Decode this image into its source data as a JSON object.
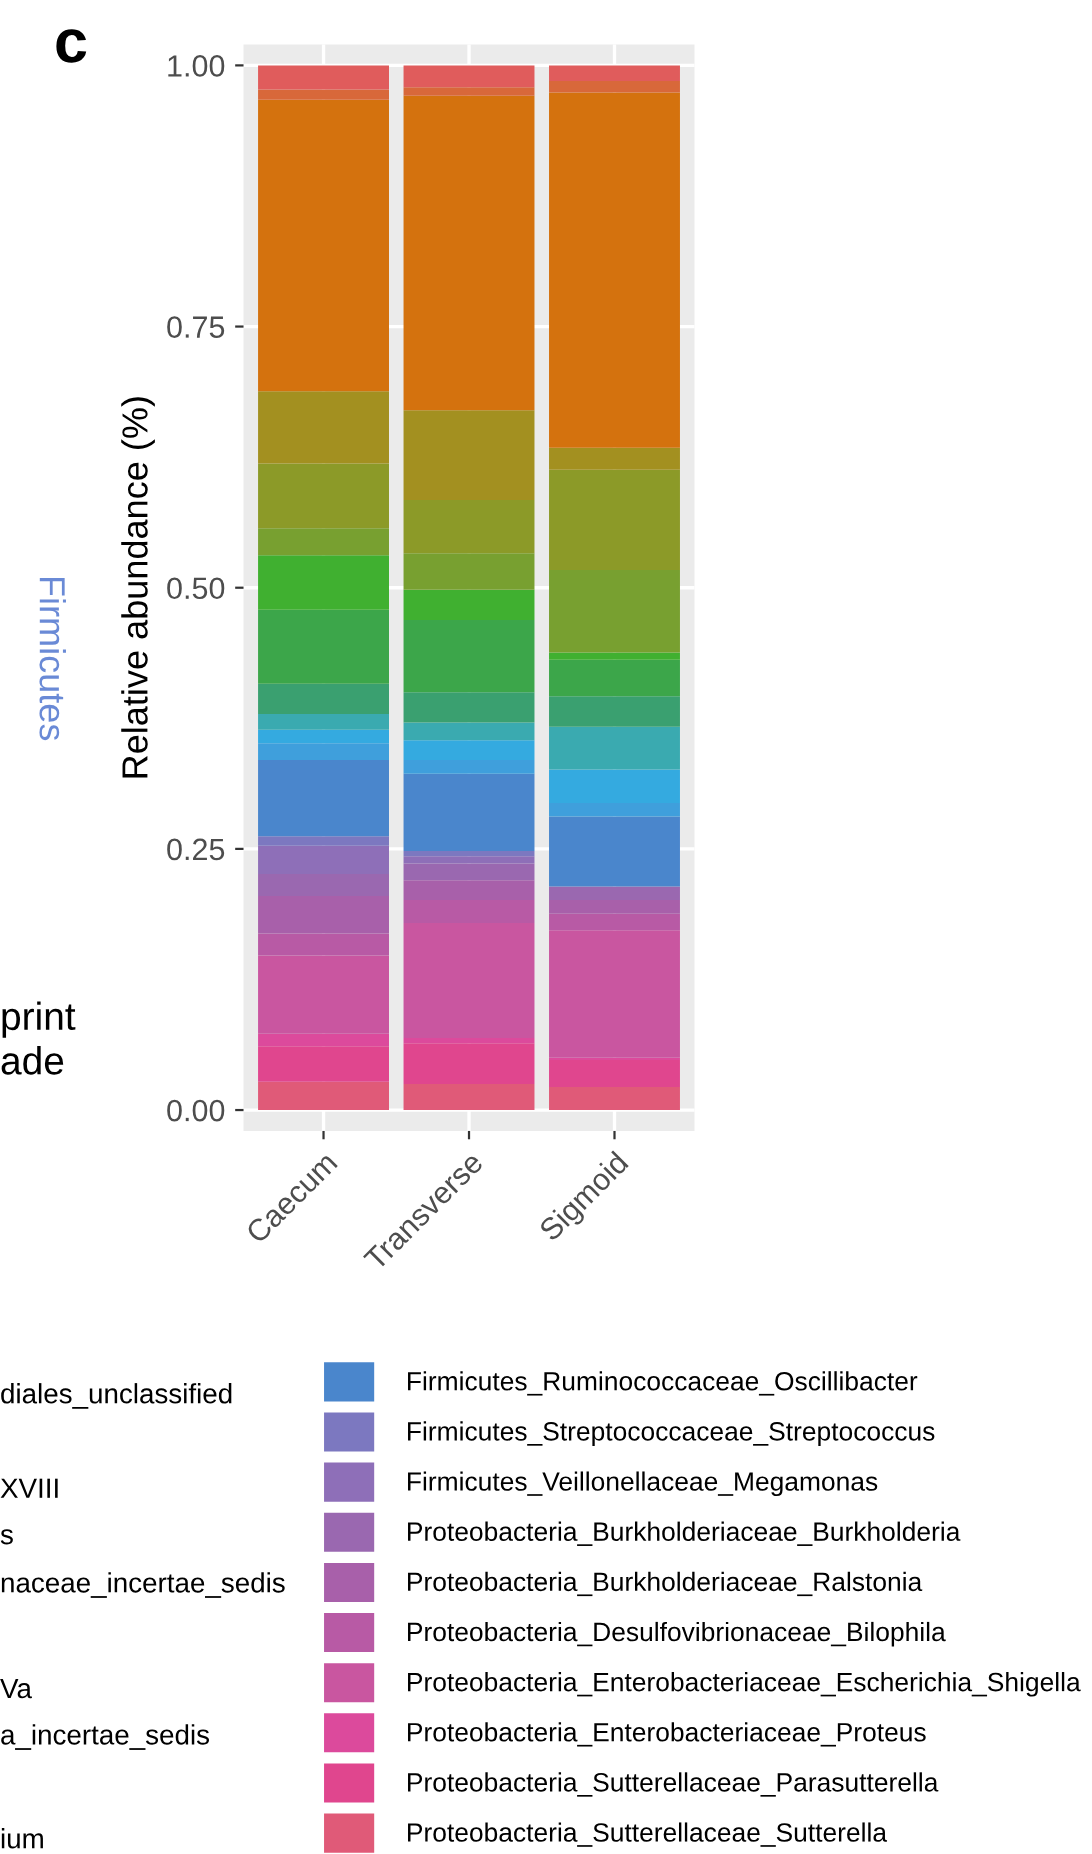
{
  "chart_data": {
    "type": "bar",
    "stacked": true,
    "ylabel": "Relative abundance (%)",
    "categories": [
      "Caecum",
      "Transverse",
      "Sigmoid"
    ],
    "ylim": [
      -0.02,
      1.02
    ],
    "yticks": [
      {
        "value": 0,
        "label": "0.00"
      },
      {
        "value": 0.25,
        "label": "0.25"
      },
      {
        "value": 0.5,
        "label": "0.50"
      },
      {
        "value": 0.75,
        "label": "0.75"
      },
      {
        "value": 1,
        "label": "1.00"
      }
    ],
    "grid": true,
    "legend": "bottom",
    "annotations": [
      "c",
      "Firmicutes",
      "print",
      "ade",
      "diales_unclassified",
      "XVIII",
      "s",
      "naceae_incertae_sedis",
      "Va",
      "a_incertae_sedis",
      "ium"
    ],
    "series": [
      {
        "name": "Proteobacteria_Sutterellaceae_Sutterella",
        "color": "#e05a78",
        "values": [
          0.027,
          0.025,
          0.022
        ]
      },
      {
        "name": "Proteobacteria_Sutterellaceae_Parasutterella",
        "color": "#e0468e",
        "values": [
          0.034,
          0.039,
          0.026
        ]
      },
      {
        "name": "Proteobacteria_Enterobacteriaceae_Proteus",
        "color": "#dc4a9c",
        "values": [
          0.012,
          0.005,
          0.002
        ]
      },
      {
        "name": "Proteobacteria_Enterobacteriaceae_Escherichia_Shigella",
        "color": "#c956a0",
        "values": [
          0.075,
          0.11,
          0.122
        ]
      },
      {
        "name": "Proteobacteria_Desulfovibrionaceae_Bilophila",
        "color": "#b85aa5",
        "values": [
          0.021,
          0.022,
          0.016
        ]
      },
      {
        "name": "Proteobacteria_Burkholderiaceae_Ralstonia",
        "color": "#a860aa",
        "values": [
          0.036,
          0.019,
          0.013
        ]
      },
      {
        "name": "Proteobacteria_Burkholderiaceae_Burkholderia",
        "color": "#9a68b0",
        "values": [
          0.021,
          0.016,
          0.013
        ]
      },
      {
        "name": "Firmicutes_Veillonellaceae_Megamonas",
        "color": "#8e6fb8",
        "values": [
          0.027,
          0.007,
          0
        ]
      },
      {
        "name": "Firmicutes_Streptococcaceae_Streptococcus",
        "color": "#7c78c0",
        "values": [
          0.009,
          0.005,
          0
        ]
      },
      {
        "name": "Firmicutes_Ruminococcaceae_Oscillibacter",
        "color": "#4a86cc",
        "values": [
          0.073,
          0.074,
          0.067
        ]
      },
      {
        "color": "#3f9fdc",
        "values": [
          0.016,
          0.013,
          0.013
        ]
      },
      {
        "color": "#34aae0",
        "values": [
          0.013,
          0.019,
          0.032
        ]
      },
      {
        "color": "#3aaab0",
        "values": [
          0.015,
          0.017,
          0.041
        ]
      },
      {
        "color": "#3aa070",
        "values": [
          0.029,
          0.029,
          0.029
        ]
      },
      {
        "color": "#3ca64a",
        "values": [
          0.071,
          0.069,
          0.035
        ]
      },
      {
        "color": "#40b030",
        "values": [
          0.052,
          0.029,
          0.007
        ]
      },
      {
        "color": "#78a030",
        "values": [
          0.026,
          0.035,
          0.079
        ]
      },
      {
        "color": "#8c9a28",
        "values": [
          0.062,
          0.051,
          0.096
        ]
      },
      {
        "color": "#a39020",
        "values": [
          0.069,
          0.086,
          0.021
        ]
      },
      {
        "color": "#d4720e",
        "values": [
          0.279,
          0.301,
          0.34
        ]
      },
      {
        "color": "#d8683a",
        "values": [
          0.01,
          0.008,
          0.011
        ]
      },
      {
        "color": "#e05c5c",
        "values": [
          0.023,
          0.021,
          0.015
        ]
      }
    ]
  }
}
